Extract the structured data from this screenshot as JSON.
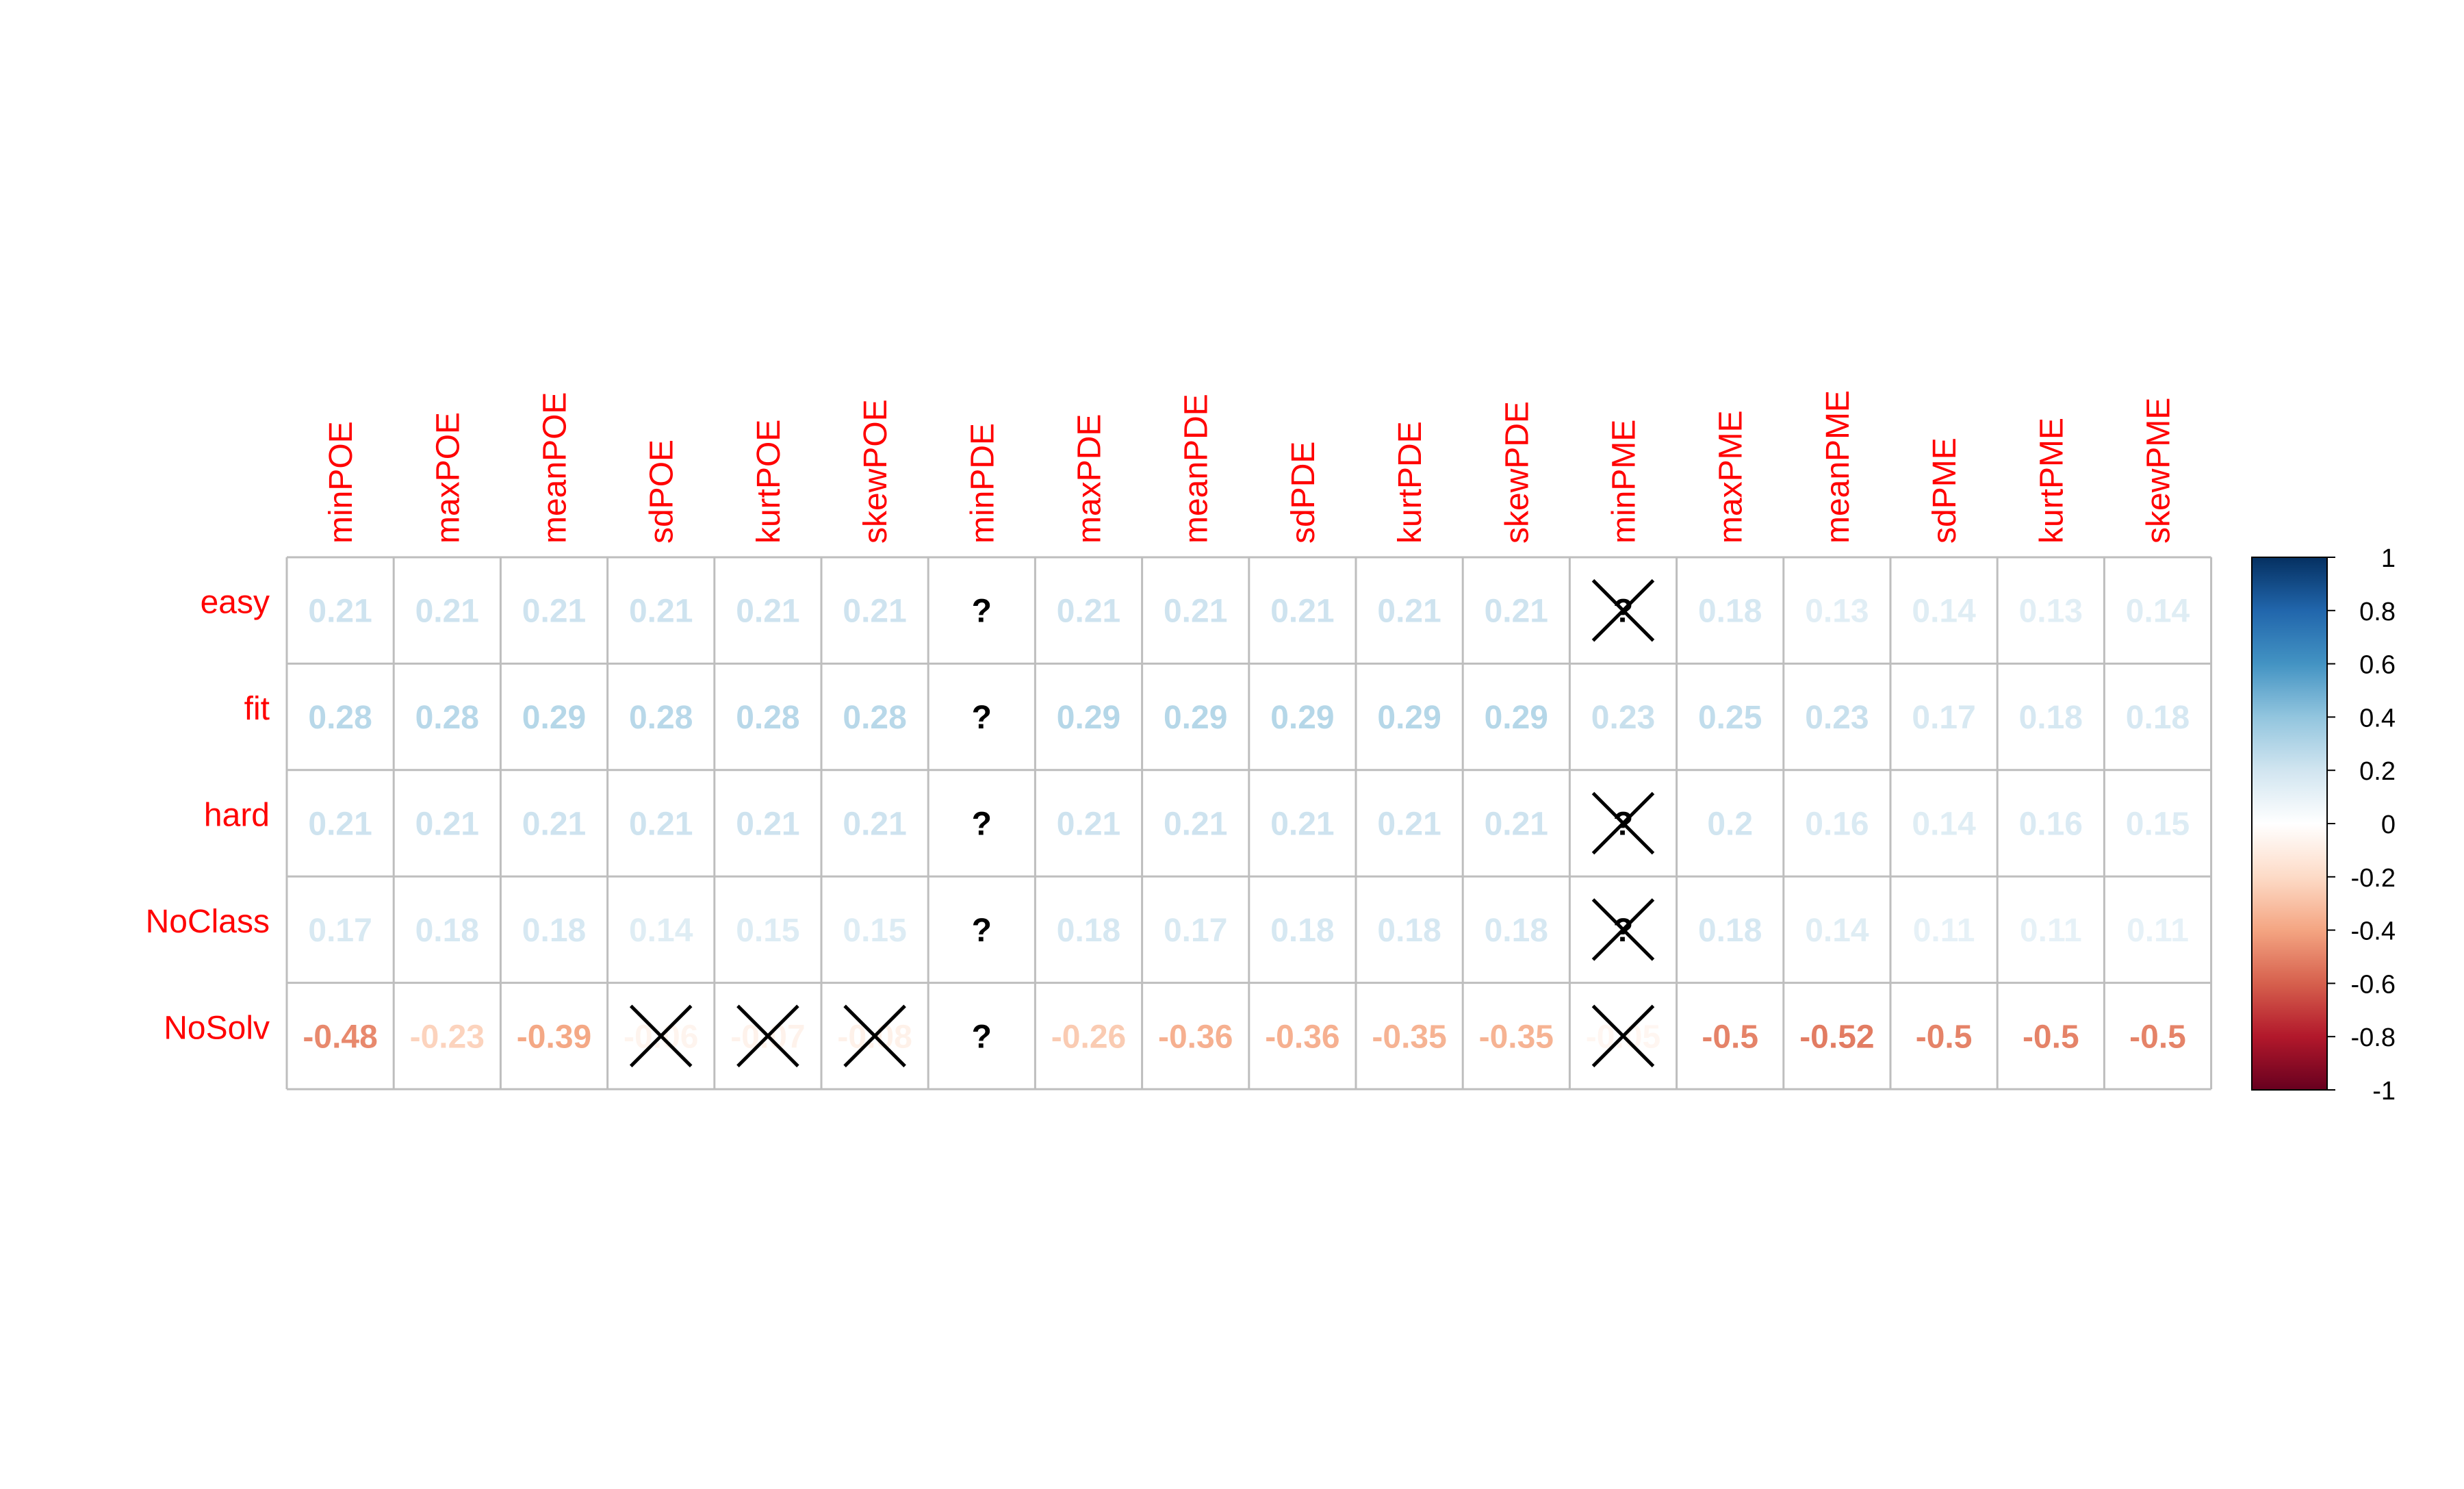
{
  "chart_data": {
    "type": "heatmap",
    "title": "",
    "rows": [
      "easy",
      "fit",
      "hard",
      "NoClass",
      "NoSolv"
    ],
    "columns": [
      "minPOE",
      "maxPOE",
      "meanPOE",
      "sdPOE",
      "kurtPOE",
      "skewPOE",
      "minPDE",
      "maxPDE",
      "meanPDE",
      "sdPDE",
      "kurtPDE",
      "skewPDE",
      "minPME",
      "maxPME",
      "meanPME",
      "sdPME",
      "kurtPME",
      "skewPME"
    ],
    "values": [
      [
        0.21,
        0.21,
        0.21,
        0.21,
        0.21,
        0.21,
        null,
        0.21,
        0.21,
        0.21,
        0.21,
        0.21,
        null,
        0.18,
        0.13,
        0.14,
        0.13,
        0.14
      ],
      [
        0.28,
        0.28,
        0.29,
        0.28,
        0.28,
        0.28,
        null,
        0.29,
        0.29,
        0.29,
        0.29,
        0.29,
        0.23,
        0.25,
        0.23,
        0.17,
        0.18,
        0.18
      ],
      [
        0.21,
        0.21,
        0.21,
        0.21,
        0.21,
        0.21,
        null,
        0.21,
        0.21,
        0.21,
        0.21,
        0.21,
        null,
        0.2,
        0.16,
        0.14,
        0.16,
        0.15
      ],
      [
        0.17,
        0.18,
        0.18,
        0.14,
        0.15,
        0.15,
        null,
        0.18,
        0.17,
        0.18,
        0.18,
        0.18,
        null,
        0.18,
        0.14,
        0.11,
        0.11,
        0.11
      ],
      [
        -0.48,
        -0.23,
        -0.39,
        -0.06,
        -0.07,
        -0.08,
        null,
        -0.26,
        -0.36,
        -0.36,
        -0.35,
        -0.35,
        -0.05,
        -0.5,
        -0.52,
        -0.5,
        -0.5,
        -0.5
      ]
    ],
    "missing_label": "?",
    "insignificant": [
      [
        0,
        12
      ],
      [
        2,
        12
      ],
      [
        3,
        12
      ],
      [
        4,
        3
      ],
      [
        4,
        4
      ],
      [
        4,
        5
      ],
      [
        4,
        12
      ]
    ],
    "colorbar": {
      "range": [
        -1,
        1
      ],
      "ticks": [
        "1",
        "0.8",
        "0.6",
        "0.4",
        "0.2",
        "0",
        "-0.2",
        "-0.4",
        "-0.6",
        "-0.8",
        "-1"
      ],
      "colors": [
        "#67001F",
        "#B2182B",
        "#D6604D",
        "#F4A582",
        "#FDDBC7",
        "#FFFFFF",
        "#D1E5F0",
        "#92C5DE",
        "#4393C3",
        "#2166AC",
        "#053061"
      ]
    },
    "label_color": "#FF0000",
    "grid_color": "#BEBEBE",
    "legend_position": "right"
  }
}
